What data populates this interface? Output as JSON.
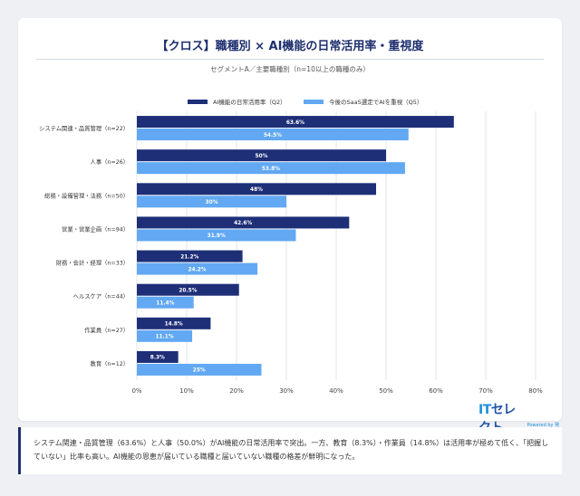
{
  "title": "【クロス】職種別 × AI機能の日常活用率・重視度",
  "subtitle": "セグメントA／主要職種別（n=10以上の職種のみ）",
  "logo": {
    "brand_a": "IT",
    "brand_b": "セレクト",
    "sub": "Powered by 発注ナビ"
  },
  "note": "システム関連・品質管理（63.6%）と人事（50.0%）がAI機能の日常活用率で突出。一方、教育（8.3%）・作業員（14.8%）は活用率が極めて低く、「把握していない」比率も高い。AI機能の恩恵が届いている職種と届いていない職種の格差が鮮明になった。",
  "colors": {
    "series1": "#1e2f78",
    "series2": "#62a8f2",
    "grid": "#e3e6ee",
    "axis_text": "#444444"
  },
  "chart_data": {
    "type": "bar",
    "orientation": "horizontal",
    "categories": [
      "システム関連・品質管理（n=22）",
      "人事（n=26）",
      "総務・設備管理・法務（n=50）",
      "営業・営業企画（n=94）",
      "財務・会計・経理（n=33）",
      "ヘルスケア（n=44）",
      "作業員（n=27）",
      "教育（n=12）"
    ],
    "series": [
      {
        "name": "AI機能の日常活用率（Q2）",
        "values": [
          63.6,
          50,
          48,
          42.6,
          21.2,
          20.5,
          14.8,
          8.3
        ],
        "labels": [
          "63.6%",
          "50%",
          "48%",
          "42.6%",
          "21.2%",
          "20.5%",
          "14.8%",
          "8.3%"
        ]
      },
      {
        "name": "今後のSaaS選定でAIを重視（Q5）",
        "values": [
          54.5,
          53.8,
          30,
          31.9,
          24.2,
          11.4,
          11.1,
          25
        ],
        "labels": [
          "54.5%",
          "53.8%",
          "30%",
          "31.9%",
          "24.2%",
          "11.4%",
          "11.1%",
          "25%"
        ]
      }
    ],
    "xlim": [
      0,
      80
    ],
    "xticks": [
      "0%",
      "10%",
      "20%",
      "30%",
      "40%",
      "50%",
      "60%",
      "70%",
      "80%"
    ],
    "grid": true,
    "legend_position": "top"
  }
}
